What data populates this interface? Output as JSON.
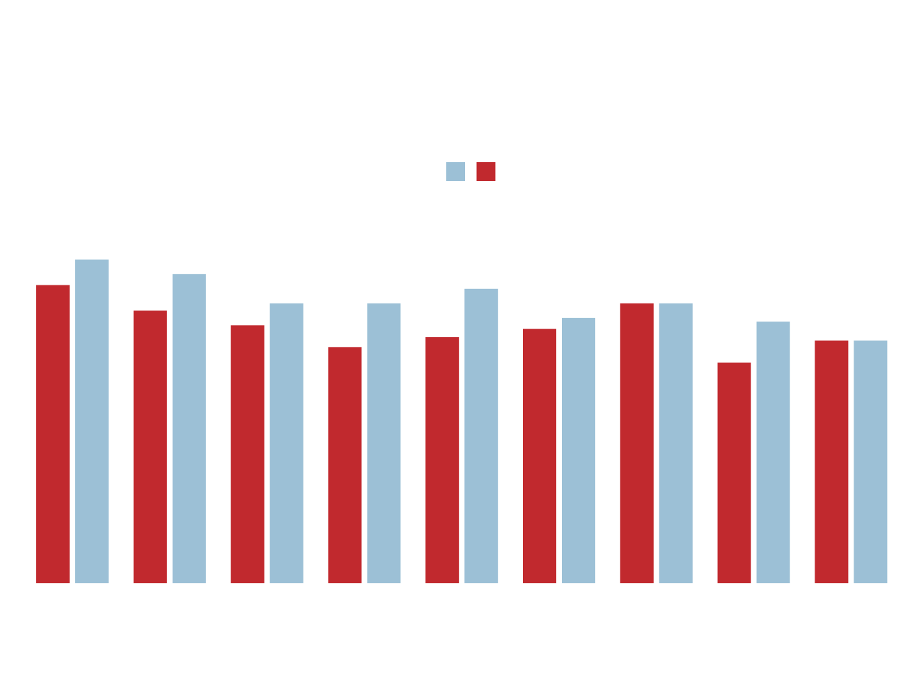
{
  "chart_data": {
    "type": "bar",
    "title": "",
    "xlabel": "",
    "ylabel": "",
    "categories": [
      "",
      "",
      "",
      "",
      "",
      "",
      "",
      "",
      ""
    ],
    "ylim": [
      0,
      50
    ],
    "grid": false,
    "legend": "top-center",
    "series": [
      {
        "color": "#c1292e",
        "values": [
          40.8,
          37.3,
          35.3,
          32.3,
          33.7,
          34.8,
          38.3,
          30.2,
          33.2
        ]
      },
      {
        "color": "#9cc0d6",
        "values": [
          44.3,
          42.3,
          38.3,
          38.3,
          40.3,
          36.3,
          38.3,
          35.8,
          33.2
        ]
      }
    ],
    "legend_order": [
      1,
      0
    ]
  }
}
